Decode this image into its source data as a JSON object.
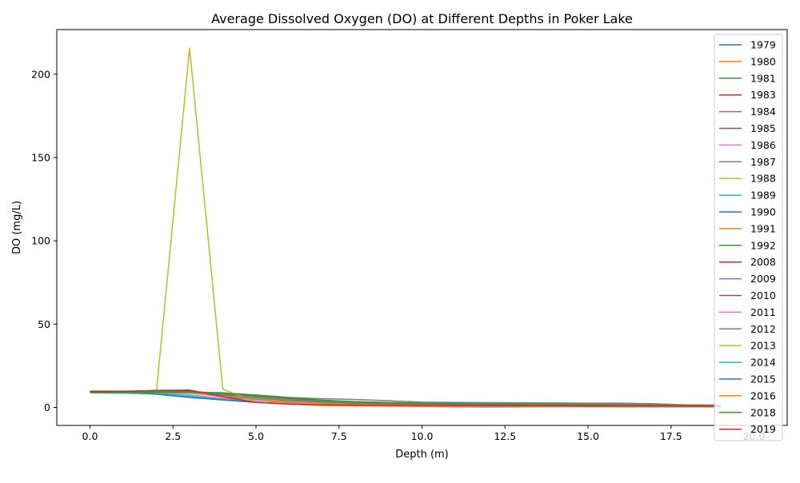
{
  "chart_data": {
    "type": "line",
    "title": "Average Dissolved Oxygen (DO) at Different Depths in Poker Lake",
    "xlabel": "Depth (m)",
    "ylabel": "DO (mg/L)",
    "xlim": [
      -1.0,
      21.0
    ],
    "ylim": [
      -10.8,
      226.8
    ],
    "x_ticks": [
      0.0,
      2.5,
      5.0,
      7.5,
      10.0,
      12.5,
      15.0,
      17.5,
      20.0
    ],
    "x_tick_labels": [
      "0.0",
      "2.5",
      "5.0",
      "7.5",
      "10.0",
      "12.5",
      "15.0",
      "17.5",
      "20.0"
    ],
    "y_ticks": [
      0,
      50,
      100,
      150,
      200
    ],
    "y_tick_labels": [
      "0",
      "50",
      "100",
      "150",
      "200"
    ],
    "grid": false,
    "legend_position": "upper-right",
    "series": [
      {
        "name": "1979",
        "color": "#1f77b4",
        "x": [
          0,
          1,
          2,
          3,
          4,
          5,
          6,
          7,
          8,
          9,
          10,
          11,
          12,
          13,
          14,
          15,
          16,
          17,
          18,
          19
        ],
        "y": [
          9.5,
          9.4,
          9.6,
          9.5,
          8.0,
          6.5,
          5.0,
          3.5,
          2.5,
          2.0,
          1.8,
          1.6,
          1.5,
          1.4,
          1.3,
          1.3,
          1.2,
          1.2,
          1.1,
          1.1
        ]
      },
      {
        "name": "1980",
        "color": "#ff7f0e",
        "x": [
          0,
          1,
          2,
          3,
          4,
          5,
          6,
          7,
          8,
          9,
          10,
          11,
          12,
          13,
          14,
          15,
          16,
          17,
          18,
          19
        ],
        "y": [
          9.2,
          9.1,
          9.3,
          9.0,
          7.5,
          6.0,
          4.5,
          3.0,
          2.2,
          1.8,
          1.5,
          1.4,
          1.3,
          1.2,
          1.2,
          1.1,
          1.1,
          1.0,
          1.0,
          1.0
        ]
      },
      {
        "name": "1981",
        "color": "#2ca02c",
        "x": [
          0,
          1,
          2,
          3,
          4,
          5,
          6,
          7,
          8,
          9,
          10,
          11,
          12,
          13,
          14,
          15,
          16,
          17,
          18,
          19
        ],
        "y": [
          9.0,
          9.0,
          9.2,
          9.1,
          8.5,
          7.0,
          5.5,
          4.0,
          3.0,
          2.5,
          2.2,
          2.0,
          1.9,
          1.8,
          1.7,
          1.6,
          1.5,
          1.4,
          1.3,
          1.2
        ]
      },
      {
        "name": "1983",
        "color": "#d62728",
        "x": [
          0,
          1,
          2,
          3,
          4,
          5,
          6,
          7,
          8,
          9,
          10,
          11,
          12,
          13,
          14,
          15,
          16,
          17,
          18,
          19
        ],
        "y": [
          9.8,
          9.7,
          9.9,
          9.6,
          7.8,
          5.5,
          4.0,
          3.0,
          2.4,
          2.0,
          1.8,
          1.6,
          1.5,
          1.4,
          1.3,
          1.2,
          1.2,
          1.1,
          1.0,
          1.0
        ]
      },
      {
        "name": "1984",
        "color": "#9467bd",
        "x": [
          0,
          1,
          2,
          3,
          4,
          5,
          6,
          7,
          8,
          9,
          10,
          11,
          12,
          13,
          14,
          15,
          16,
          17,
          18,
          19
        ],
        "y": [
          9.1,
          9.0,
          9.1,
          8.8,
          6.5,
          4.5,
          3.0,
          2.2,
          1.8,
          1.5,
          1.3,
          1.2,
          1.1,
          1.0,
          1.0,
          0.9,
          0.9,
          0.9,
          0.8,
          0.8
        ]
      },
      {
        "name": "1985",
        "color": "#8c564b",
        "x": [
          0,
          1,
          2,
          3,
          4,
          5,
          6,
          7,
          8,
          9,
          10,
          11,
          12,
          13,
          14,
          15,
          16,
          17,
          18,
          19
        ],
        "y": [
          9.4,
          9.3,
          9.5,
          9.4,
          8.2,
          6.8,
          5.2,
          4.2,
          3.5,
          3.0,
          2.6,
          2.4,
          2.2,
          2.0,
          1.9,
          1.8,
          1.7,
          1.6,
          1.5,
          1.4
        ]
      },
      {
        "name": "1986",
        "color": "#e377c2",
        "x": [
          0,
          1,
          2,
          3,
          4,
          5,
          6,
          7,
          8,
          9,
          10,
          11,
          12,
          13,
          14,
          15,
          16,
          17,
          18,
          19
        ],
        "y": [
          9.0,
          8.9,
          8.8,
          7.5,
          5.5,
          3.5,
          2.0,
          1.2,
          0.9,
          0.7,
          0.6,
          0.3,
          0.2,
          0.3,
          0.4,
          0.5,
          0.5,
          0.6,
          0.6,
          0.6
        ]
      },
      {
        "name": "1987",
        "color": "#7f7f7f",
        "x": [
          0,
          1,
          2,
          3,
          4,
          5,
          6,
          7,
          8,
          9,
          10,
          11,
          12,
          13,
          14,
          15,
          16,
          17,
          18,
          19
        ],
        "y": [
          9.3,
          9.2,
          9.4,
          9.3,
          8.8,
          7.5,
          6.0,
          5.2,
          4.8,
          4.0,
          3.2,
          3.0,
          2.9,
          2.8,
          2.7,
          2.6,
          2.6,
          2.2,
          1.5,
          1.2
        ]
      },
      {
        "name": "1988",
        "color": "#bcbd22",
        "x": [
          0,
          1,
          2,
          3,
          4,
          5,
          6,
          7,
          8,
          9,
          10,
          11,
          12,
          13,
          14,
          15,
          16,
          17,
          18,
          19
        ],
        "y": [
          9.1,
          9.0,
          9.2,
          9.0,
          7.5,
          6.0,
          4.5,
          3.2,
          2.5,
          2.0,
          1.8,
          1.6,
          1.5,
          1.4,
          1.3,
          1.2,
          1.1,
          1.0,
          1.0,
          0.9
        ]
      },
      {
        "name": "1989",
        "color": "#17becf",
        "x": [
          0,
          1,
          2,
          3,
          4,
          5,
          6,
          7,
          8,
          9,
          10,
          11,
          12,
          13,
          14,
          15,
          16,
          17,
          18,
          19
        ],
        "y": [
          8.7,
          8.5,
          8.3,
          6.8,
          4.8,
          3.2,
          2.5,
          2.0,
          1.8,
          1.6,
          1.5,
          1.4,
          1.3,
          1.2,
          1.2,
          1.1,
          1.1,
          1.0,
          1.0,
          0.9
        ]
      },
      {
        "name": "1990",
        "color": "#1f77b4",
        "x": [
          0,
          1,
          2,
          3,
          4,
          5,
          6,
          7,
          8,
          9,
          10,
          11,
          12,
          13,
          14,
          15,
          16,
          17,
          18,
          19
        ],
        "y": [
          9.2,
          9.0,
          8.0,
          6.0,
          4.5,
          3.0,
          2.2,
          1.8,
          1.6,
          1.5,
          1.4,
          1.3,
          1.2,
          1.2,
          1.1,
          1.1,
          1.0,
          1.0,
          0.9,
          0.9
        ]
      },
      {
        "name": "1991",
        "color": "#ff7f0e",
        "x": [
          0,
          1,
          2,
          3,
          4,
          5,
          6,
          7,
          8,
          9,
          10,
          11,
          12,
          13,
          14,
          15,
          16,
          17,
          18,
          19
        ],
        "y": [
          9.3,
          9.2,
          9.4,
          9.6,
          8.0,
          5.0,
          2.0,
          1.2,
          1.0,
          0.9,
          0.8,
          0.8,
          0.7,
          0.6,
          0.5,
          0.4,
          0.3,
          0.3,
          0.3,
          0.3
        ]
      },
      {
        "name": "1992",
        "color": "#2ca02c",
        "x": [
          0,
          1,
          2,
          3,
          4,
          5,
          6,
          7,
          8,
          9,
          10,
          11,
          12,
          13,
          14,
          15,
          16,
          17,
          18,
          19
        ],
        "y": [
          9.0,
          8.9,
          9.0,
          8.8,
          7.2,
          5.5,
          3.8,
          2.8,
          2.2,
          1.9,
          1.7,
          1.5,
          1.4,
          1.3,
          1.2,
          1.1,
          1.1,
          1.0,
          1.0,
          0.9
        ]
      },
      {
        "name": "2008",
        "color": "#d62728",
        "x": [
          0,
          1,
          2,
          3,
          4,
          5,
          6,
          7,
          8,
          9,
          10,
          11,
          12,
          13,
          14,
          15,
          16,
          17,
          18,
          19
        ],
        "y": [
          9.5,
          9.4,
          9.8,
          9.8,
          8.0,
          6.5,
          5.0,
          4.0,
          3.0,
          2.6,
          2.4,
          2.2,
          2.0,
          1.8,
          1.6,
          1.5,
          1.4,
          1.3,
          1.2,
          1.1
        ]
      },
      {
        "name": "2009",
        "color": "#9467bd",
        "x": [
          0,
          1,
          2,
          3,
          4,
          5,
          6,
          7,
          8,
          9,
          10,
          11,
          12,
          13,
          14,
          15,
          16,
          17,
          18,
          19
        ],
        "y": [
          9.2,
          9.1,
          9.3,
          9.0,
          7.0,
          5.0,
          3.5,
          2.5,
          2.0,
          1.7,
          1.5,
          1.3,
          1.2,
          1.1,
          1.0,
          1.0,
          0.9,
          0.9,
          0.8,
          0.8
        ]
      },
      {
        "name": "2010",
        "color": "#8c564b",
        "x": [
          0,
          1,
          2,
          3,
          4,
          5,
          6,
          7,
          8,
          9,
          10,
          11,
          12,
          13,
          14,
          15,
          16,
          17,
          18,
          19
        ],
        "y": [
          9.6,
          9.5,
          9.7,
          9.6,
          8.2,
          6.6,
          5.0,
          3.8,
          3.0,
          2.6,
          2.3,
          2.1,
          2.0,
          1.9,
          1.8,
          1.7,
          1.6,
          1.5,
          1.4,
          1.3
        ]
      },
      {
        "name": "2011",
        "color": "#e377c2",
        "x": [
          0,
          1,
          2,
          3,
          4,
          5,
          6,
          7,
          8,
          9,
          10,
          11,
          12,
          13,
          14,
          15,
          16,
          17,
          18,
          19
        ],
        "y": [
          9.1,
          9.0,
          9.2,
          8.8,
          6.8,
          4.8,
          3.2,
          2.3,
          1.8,
          1.5,
          1.3,
          1.1,
          1.0,
          0.9,
          0.8,
          0.8,
          0.7,
          0.7,
          0.6,
          0.6
        ]
      },
      {
        "name": "2012",
        "color": "#7f7f7f",
        "x": [
          0,
          1,
          2,
          3,
          4,
          5,
          6,
          7,
          8,
          9,
          10,
          11,
          12,
          13,
          14,
          15,
          16,
          17,
          18,
          19
        ],
        "y": [
          9.3,
          9.2,
          9.4,
          9.2,
          7.8,
          6.4,
          4.8,
          3.6,
          3.0,
          2.8,
          2.6,
          2.5,
          2.4,
          2.3,
          2.2,
          2.1,
          2.0,
          1.8,
          1.5,
          1.2
        ]
      },
      {
        "name": "2013",
        "color": "#bcbd22",
        "x": [
          0,
          1,
          2,
          3,
          4,
          5,
          6,
          7,
          8,
          9,
          10,
          11,
          12,
          13,
          14,
          15,
          16,
          17,
          18,
          19
        ],
        "y": [
          9.0,
          9.1,
          9.3,
          215.7,
          11.0,
          3.0,
          2.2,
          1.8,
          1.6,
          1.5,
          1.4,
          1.3,
          1.2,
          1.1,
          1.0,
          1.0,
          0.9,
          0.9,
          0.8,
          0.8
        ]
      },
      {
        "name": "2014",
        "color": "#17becf",
        "x": [
          0,
          1,
          2,
          3,
          4,
          5,
          6,
          7,
          8,
          9,
          10,
          11,
          12,
          13,
          14,
          15,
          16,
          17,
          18,
          19
        ],
        "y": [
          8.9,
          8.8,
          8.9,
          8.6,
          6.8,
          5.0,
          3.6,
          2.6,
          2.1,
          1.8,
          1.6,
          1.5,
          1.4,
          1.3,
          1.2,
          1.1,
          1.1,
          1.0,
          1.0,
          0.9
        ]
      },
      {
        "name": "2015",
        "color": "#1f77b4",
        "x": [
          0,
          1,
          2,
          3,
          4,
          5,
          6,
          7,
          8,
          9,
          10,
          11,
          12,
          13,
          14,
          15,
          16,
          17,
          18,
          19
        ],
        "y": [
          9.2,
          9.1,
          9.2,
          9.0,
          7.2,
          5.4,
          3.9,
          2.9,
          2.3,
          1.9,
          1.7,
          1.5,
          1.4,
          1.3,
          1.2,
          1.1,
          1.1,
          1.0,
          1.0,
          0.9
        ]
      },
      {
        "name": "2016",
        "color": "#ff7f0e",
        "x": [
          0,
          1,
          2,
          3,
          4,
          5,
          6,
          7,
          8,
          9,
          10,
          11,
          12,
          13,
          14,
          15,
          16,
          17,
          18,
          19
        ],
        "y": [
          9.0,
          9.0,
          9.1,
          8.9,
          7.0,
          5.2,
          3.6,
          2.6,
          2.0,
          1.7,
          1.5,
          1.3,
          1.2,
          1.1,
          1.0,
          1.0,
          0.9,
          0.9,
          0.8,
          0.8
        ]
      },
      {
        "name": "2018",
        "color": "#2ca02c",
        "x": [
          0,
          1,
          2,
          3,
          4,
          5,
          6,
          7,
          8,
          9,
          10,
          11,
          12,
          13,
          14,
          15,
          16,
          17,
          18,
          19
        ],
        "y": [
          9.1,
          9.0,
          9.2,
          9.1,
          8.6,
          7.2,
          5.8,
          4.4,
          3.4,
          2.8,
          2.4,
          2.2,
          2.0,
          1.8,
          1.6,
          1.4,
          1.3,
          1.2,
          1.1,
          1.0
        ]
      },
      {
        "name": "2019",
        "color": "#d62728",
        "x": [
          0,
          1,
          2,
          3,
          4,
          5,
          6,
          7,
          8,
          9,
          10,
          11,
          12,
          13,
          14,
          15,
          16,
          17,
          18,
          19
        ],
        "y": [
          9.4,
          9.6,
          10.2,
          10.4,
          6.5,
          3.0,
          2.0,
          1.6,
          1.4,
          1.3,
          1.2,
          1.1,
          1.1,
          1.0,
          1.0,
          0.9,
          0.9,
          0.9,
          0.8,
          0.8
        ]
      }
    ]
  }
}
